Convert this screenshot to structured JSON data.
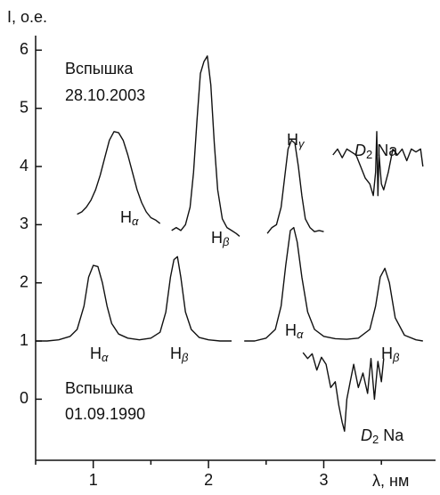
{
  "chart_data": {
    "type": "line",
    "y_label": "I, о.е.",
    "x_label": "λ, нм",
    "xlim": [
      0.5,
      3.97
    ],
    "ylim": [
      -1.05,
      6.25
    ],
    "xticks": [
      1,
      2,
      3
    ],
    "xminorticks": [
      0.5,
      1.5,
      2.5,
      3.5
    ],
    "yticks": [
      0,
      1,
      2,
      3,
      4,
      5,
      6
    ],
    "notes": [
      "Вспышка",
      "28.10.2003",
      "Вспышка",
      "01.09.1990"
    ],
    "line_labels": [
      [
        "H",
        "α"
      ],
      [
        "H",
        "β"
      ],
      [
        "H",
        "γ"
      ],
      [
        "D",
        "2",
        " Na"
      ],
      [
        "H",
        "α"
      ],
      [
        "H",
        "β"
      ],
      [
        "H",
        "α"
      ],
      [
        "H",
        "β"
      ],
      [
        "D",
        "2",
        " Na"
      ]
    ],
    "series": [
      {
        "color": "#111111",
        "x": [
          0.86,
          0.9,
          0.94,
          0.98,
          1.02,
          1.06,
          1.1,
          1.14,
          1.18,
          1.22,
          1.26,
          1.3,
          1.34,
          1.38,
          1.42,
          1.46,
          1.5,
          1.54,
          1.58,
          null,
          1.68,
          1.72,
          1.76,
          1.8,
          1.84,
          1.87,
          1.9,
          1.93,
          1.96,
          1.99,
          2.02,
          2.05,
          2.08,
          2.12,
          2.16,
          2.2,
          2.24,
          2.27,
          null,
          2.51,
          2.55,
          2.59,
          2.63,
          2.66,
          2.69,
          2.72,
          2.75,
          2.78,
          2.81,
          2.84,
          2.88,
          2.92,
          2.96,
          3.0,
          null,
          3.08,
          3.12,
          3.16,
          3.2,
          3.24,
          3.28,
          3.32,
          3.36,
          3.4,
          3.43,
          3.45,
          3.46,
          3.47,
          3.48,
          3.5,
          3.52,
          3.56,
          3.6,
          3.64,
          3.68,
          3.72,
          3.76,
          3.8,
          3.84,
          3.86
        ],
        "values": [
          3.18,
          3.22,
          3.3,
          3.42,
          3.6,
          3.85,
          4.15,
          4.45,
          4.6,
          4.58,
          4.45,
          4.2,
          3.9,
          3.6,
          3.38,
          3.22,
          3.12,
          3.08,
          3.02,
          null,
          2.9,
          2.95,
          2.9,
          3.0,
          3.3,
          3.9,
          4.8,
          5.6,
          5.8,
          5.9,
          5.4,
          4.4,
          3.6,
          3.1,
          2.95,
          2.9,
          2.85,
          2.8,
          null,
          2.85,
          2.95,
          3.0,
          3.3,
          3.8,
          4.3,
          4.45,
          4.4,
          4.0,
          3.5,
          3.1,
          2.95,
          2.88,
          2.9,
          2.88,
          null,
          4.2,
          4.3,
          4.15,
          4.3,
          4.25,
          4.2,
          4.0,
          3.8,
          3.7,
          3.5,
          3.9,
          4.6,
          3.5,
          4.2,
          3.7,
          3.6,
          3.9,
          4.3,
          4.2,
          4.3,
          4.1,
          4.3,
          4.25,
          4.3,
          4.0
        ]
      },
      {
        "color": "#111111",
        "x": [
          0.5,
          0.6,
          0.7,
          0.8,
          0.86,
          0.92,
          0.96,
          1.0,
          1.04,
          1.08,
          1.12,
          1.16,
          1.22,
          1.3,
          1.4,
          1.5,
          1.58,
          1.63,
          1.67,
          1.7,
          1.73,
          1.76,
          1.8,
          1.85,
          1.92,
          2.0,
          2.1,
          2.2,
          null,
          2.31,
          2.4,
          2.5,
          2.58,
          2.63,
          2.67,
          2.71,
          2.74,
          2.77,
          2.81,
          2.86,
          2.92,
          3.0,
          3.1,
          3.2,
          3.3,
          3.4,
          3.45,
          3.49,
          3.53,
          3.57,
          3.62,
          3.7,
          3.8,
          3.86,
          null,
          2.82,
          2.86,
          2.9,
          2.94,
          2.98,
          3.02,
          3.06,
          3.1,
          3.13,
          3.16,
          3.18,
          3.2,
          3.23,
          3.26,
          3.3,
          3.34,
          3.38,
          3.41,
          3.44,
          3.47,
          3.5,
          3.52
        ],
        "values": [
          1.0,
          1.0,
          1.02,
          1.08,
          1.2,
          1.6,
          2.1,
          2.3,
          2.28,
          2.0,
          1.6,
          1.3,
          1.12,
          1.05,
          1.02,
          1.05,
          1.15,
          1.5,
          2.1,
          2.4,
          2.45,
          2.1,
          1.5,
          1.2,
          1.06,
          1.02,
          1.0,
          1.0,
          null,
          1.0,
          1.0,
          1.05,
          1.2,
          1.6,
          2.3,
          2.9,
          2.95,
          2.7,
          2.1,
          1.5,
          1.2,
          1.08,
          1.04,
          1.03,
          1.05,
          1.2,
          1.6,
          2.1,
          2.25,
          2.0,
          1.4,
          1.1,
          1.02,
          1.0,
          null,
          0.8,
          0.7,
          0.78,
          0.5,
          0.72,
          0.6,
          0.2,
          0.3,
          -0.1,
          -0.4,
          -0.55,
          0.0,
          0.3,
          0.6,
          0.2,
          0.45,
          0.1,
          0.7,
          0.0,
          0.65,
          0.3,
          0.7
        ]
      }
    ]
  }
}
